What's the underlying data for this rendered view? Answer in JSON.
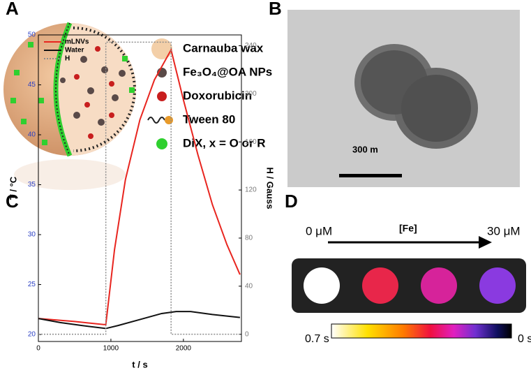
{
  "panel_labels": [
    "A",
    "B",
    "C",
    "D"
  ],
  "panel_a": {
    "legend": [
      "Carnauba wax",
      "Fe₃O₄@OA NPs",
      "Doxorubicin",
      "Tween 80",
      "DiX, x = O or R"
    ]
  },
  "panel_b": {
    "scale_label": "300 m"
  },
  "panel_d": {
    "start_label": "0 μM",
    "axis_label": "[Fe]",
    "end_label": "30 μM",
    "colorbar_min_label": "0.7 s",
    "colorbar_max_label": "0 s"
  },
  "chart_data": {
    "type": "line",
    "x_label": "t / s",
    "y_label": "T / °C",
    "y2_label": "H / Gauss",
    "xlim": [
      0,
      2800
    ],
    "xticks": [
      0,
      1000,
      2000
    ],
    "ylim": [
      19.3,
      50
    ],
    "yticks": [
      20,
      25,
      30,
      35,
      40,
      45,
      50
    ],
    "y2lim": [
      -6,
      249
    ],
    "y2ticks": [
      0,
      40,
      80,
      120,
      160,
      200,
      240
    ],
    "legend": "upper left",
    "series": [
      {
        "name": "mLNVs",
        "color": "#e8251f",
        "x": [
          0,
          500,
          900,
          930,
          1050,
          1200,
          1400,
          1600,
          1830,
          2000,
          2200,
          2400,
          2600,
          2780
        ],
        "values": [
          21.6,
          21.3,
          21.0,
          21.0,
          28.5,
          35.5,
          41.5,
          45.5,
          48.5,
          43.5,
          38,
          33,
          29,
          26
        ]
      },
      {
        "name": "Water",
        "color": "#111111",
        "x": [
          0,
          300,
          600,
          930,
          1100,
          1400,
          1700,
          1900,
          2100,
          2400,
          2780
        ],
        "values": [
          21.6,
          21.2,
          20.9,
          20.6,
          20.9,
          21.5,
          22.1,
          22.3,
          22.3,
          22.0,
          21.7
        ]
      },
      {
        "name": "H",
        "color": "#8c8c8c",
        "axis": "y2",
        "dash": true,
        "x": [
          0,
          930,
          930,
          1830,
          1830,
          2780
        ],
        "values": [
          0,
          0,
          243,
          243,
          0,
          0
        ]
      }
    ]
  }
}
